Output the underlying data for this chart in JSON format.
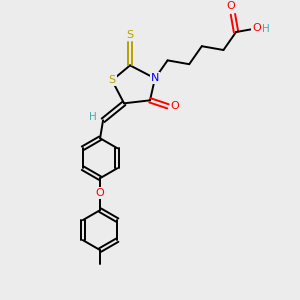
{
  "background_color": "#ececec",
  "bond_color": "#000000",
  "atom_colors": {
    "S": "#b8a000",
    "N": "#0000ff",
    "O": "#ff0000",
    "H_label": "#4aacac",
    "OH_label": "#4aacac",
    "C": "#000000"
  },
  "lw": 1.4,
  "sep": 2.2
}
